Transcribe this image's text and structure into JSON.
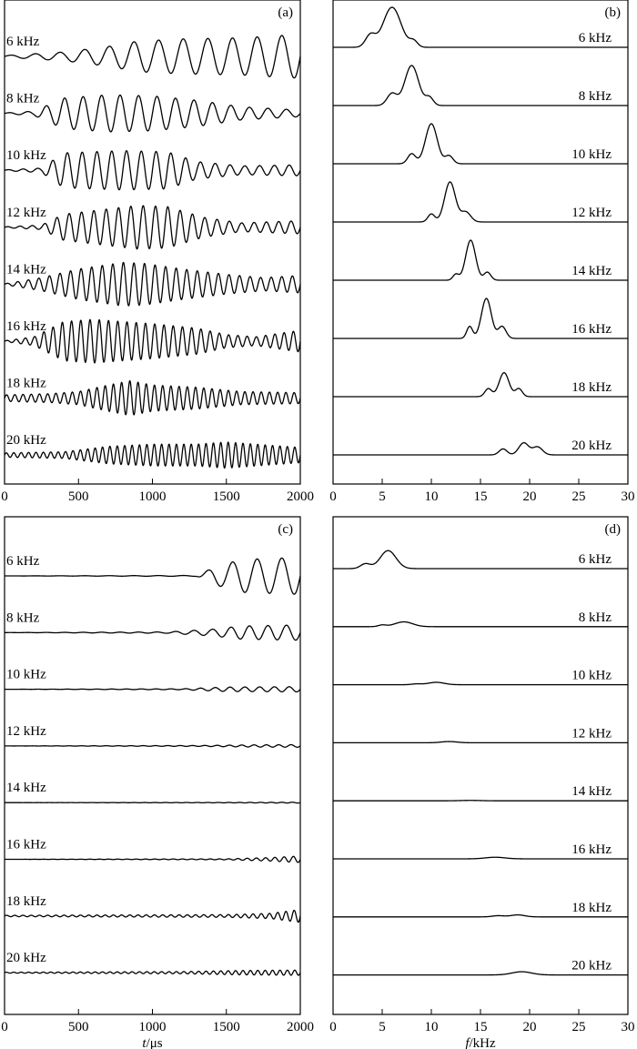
{
  "chart_data": [
    {
      "panel": "(a)",
      "type": "line",
      "xlim": [
        0,
        2000
      ],
      "x_ticks": [
        "0",
        "500",
        "1000",
        "1500",
        "2000"
      ],
      "series": [
        {
          "name": "6 kHz",
          "freq_khz": 6,
          "envelope": [
            [
              0,
              0.04
            ],
            [
              200,
              0.12
            ],
            [
              400,
              0.2
            ],
            [
              700,
              0.45
            ],
            [
              900,
              0.7
            ],
            [
              1200,
              0.8
            ],
            [
              1600,
              0.85
            ],
            [
              1850,
              0.95
            ],
            [
              2000,
              1.0
            ]
          ]
        },
        {
          "name": "8 kHz",
          "freq_khz": 8,
          "envelope": [
            [
              0,
              0.02
            ],
            [
              200,
              0.1
            ],
            [
              400,
              0.7
            ],
            [
              700,
              0.85
            ],
            [
              1000,
              0.8
            ],
            [
              1300,
              0.6
            ],
            [
              1600,
              0.3
            ],
            [
              2000,
              0.15
            ]
          ]
        },
        {
          "name": "10 kHz",
          "freq_khz": 10,
          "envelope": [
            [
              0,
              0.02
            ],
            [
              250,
              0.1
            ],
            [
              400,
              0.8
            ],
            [
              800,
              0.9
            ],
            [
              1100,
              0.85
            ],
            [
              1300,
              0.4
            ],
            [
              1600,
              0.2
            ],
            [
              2000,
              0.25
            ]
          ]
        },
        {
          "name": "12 kHz",
          "freq_khz": 12,
          "envelope": [
            [
              0,
              0.02
            ],
            [
              250,
              0.1
            ],
            [
              400,
              0.6
            ],
            [
              900,
              1.0
            ],
            [
              1100,
              0.95
            ],
            [
              1350,
              0.45
            ],
            [
              1600,
              0.2
            ],
            [
              2000,
              0.3
            ]
          ]
        },
        {
          "name": "14 kHz",
          "freq_khz": 14,
          "envelope": [
            [
              0,
              0.02
            ],
            [
              250,
              0.3
            ],
            [
              500,
              0.7
            ],
            [
              800,
              1.0
            ],
            [
              950,
              0.95
            ],
            [
              1200,
              0.7
            ],
            [
              1500,
              0.45
            ],
            [
              1750,
              0.3
            ],
            [
              2000,
              0.4
            ]
          ]
        },
        {
          "name": "16 kHz",
          "freq_khz": 16,
          "envelope": [
            [
              0,
              0.02
            ],
            [
              200,
              0.2
            ],
            [
              400,
              0.9
            ],
            [
              600,
              1.0
            ],
            [
              800,
              0.9
            ],
            [
              1000,
              0.8
            ],
            [
              1300,
              0.6
            ],
            [
              1500,
              0.3
            ],
            [
              1700,
              0.2
            ],
            [
              2000,
              0.5
            ]
          ]
        },
        {
          "name": "18 kHz",
          "freq_khz": 18,
          "envelope": [
            [
              0,
              0.15
            ],
            [
              300,
              0.2
            ],
            [
              500,
              0.3
            ],
            [
              700,
              0.6
            ],
            [
              850,
              0.8
            ],
            [
              1000,
              0.6
            ],
            [
              1300,
              0.5
            ],
            [
              1600,
              0.3
            ],
            [
              2000,
              0.25
            ]
          ]
        },
        {
          "name": "20 kHz",
          "freq_khz": 20,
          "envelope": [
            [
              0,
              0.1
            ],
            [
              400,
              0.15
            ],
            [
              700,
              0.4
            ],
            [
              1000,
              0.5
            ],
            [
              1300,
              0.5
            ],
            [
              1500,
              0.6
            ],
            [
              1700,
              0.5
            ],
            [
              2000,
              0.35
            ]
          ]
        }
      ]
    },
    {
      "panel": "(b)",
      "type": "line",
      "xlim": [
        0,
        30
      ],
      "x_ticks": [
        "0",
        "5",
        "10",
        "15",
        "20",
        "25",
        "30"
      ],
      "series": [
        {
          "name": "6 kHz",
          "peaks": [
            [
              6,
              1.0,
              0.9
            ],
            [
              3.8,
              0.3,
              0.5
            ],
            [
              8.2,
              0.15,
              0.4
            ]
          ]
        },
        {
          "name": "8 kHz",
          "peaks": [
            [
              8,
              1.0,
              0.7
            ],
            [
              6,
              0.3,
              0.5
            ],
            [
              9.8,
              0.2,
              0.4
            ]
          ]
        },
        {
          "name": "10 kHz",
          "peaks": [
            [
              10,
              1.0,
              0.6
            ],
            [
              8,
              0.25,
              0.4
            ],
            [
              11.8,
              0.2,
              0.4
            ]
          ]
        },
        {
          "name": "12 kHz",
          "peaks": [
            [
              11.9,
              1.0,
              0.55
            ],
            [
              10,
              0.2,
              0.35
            ],
            [
              13.5,
              0.25,
              0.5
            ]
          ]
        },
        {
          "name": "14 kHz",
          "peaks": [
            [
              14,
              1.0,
              0.5
            ],
            [
              12.5,
              0.15,
              0.3
            ],
            [
              15.7,
              0.2,
              0.35
            ]
          ]
        },
        {
          "name": "16 kHz",
          "peaks": [
            [
              15.6,
              1.0,
              0.5
            ],
            [
              13.9,
              0.3,
              0.3
            ],
            [
              17.2,
              0.3,
              0.4
            ]
          ]
        },
        {
          "name": "18 kHz",
          "peaks": [
            [
              17.4,
              0.6,
              0.5
            ],
            [
              15.8,
              0.2,
              0.35
            ],
            [
              18.9,
              0.2,
              0.35
            ]
          ]
        },
        {
          "name": "20 kHz",
          "peaks": [
            [
              19.4,
              0.3,
              0.5
            ],
            [
              17.3,
              0.15,
              0.4
            ],
            [
              20.8,
              0.2,
              0.5
            ]
          ]
        }
      ]
    },
    {
      "panel": "(c)",
      "type": "line",
      "xlim": [
        0,
        2000
      ],
      "x_ticks": [
        "0",
        "500",
        "1000",
        "1500",
        "2000"
      ],
      "xlabel_var": "t",
      "xlabel_unit": "/μs",
      "series": [
        {
          "name": "6 kHz",
          "freq_khz": 6,
          "envelope": [
            [
              0,
              0
            ],
            [
              1300,
              0.02
            ],
            [
              1420,
              0.4
            ],
            [
              1600,
              0.75
            ],
            [
              1800,
              0.8
            ],
            [
              2000,
              0.85
            ]
          ]
        },
        {
          "name": "8 kHz",
          "freq_khz": 8,
          "envelope": [
            [
              0,
              0
            ],
            [
              1100,
              0.03
            ],
            [
              1400,
              0.15
            ],
            [
              1600,
              0.3
            ],
            [
              2000,
              0.35
            ]
          ]
        },
        {
          "name": "10 kHz",
          "freq_khz": 10,
          "envelope": [
            [
              0,
              0
            ],
            [
              1200,
              0.02
            ],
            [
              1500,
              0.1
            ],
            [
              2000,
              0.12
            ]
          ]
        },
        {
          "name": "12 kHz",
          "freq_khz": 12,
          "envelope": [
            [
              0,
              0
            ],
            [
              1300,
              0.02
            ],
            [
              1700,
              0.05
            ],
            [
              2000,
              0.06
            ]
          ]
        },
        {
          "name": "14 kHz",
          "freq_khz": 14,
          "envelope": [
            [
              0,
              0
            ],
            [
              1500,
              0.01
            ],
            [
              2000,
              0.02
            ]
          ]
        },
        {
          "name": "16 kHz",
          "freq_khz": 16,
          "envelope": [
            [
              0,
              0
            ],
            [
              1500,
              0.02
            ],
            [
              1800,
              0.08
            ],
            [
              2000,
              0.15
            ]
          ]
        },
        {
          "name": "18 kHz",
          "freq_khz": 18,
          "envelope": [
            [
              0,
              0.03
            ],
            [
              1500,
              0.06
            ],
            [
              1800,
              0.12
            ],
            [
              2000,
              0.3
            ]
          ]
        },
        {
          "name": "20 kHz",
          "freq_khz": 20,
          "envelope": [
            [
              0,
              0.02
            ],
            [
              1200,
              0.05
            ],
            [
              1600,
              0.1
            ],
            [
              2000,
              0.12
            ]
          ]
        }
      ]
    },
    {
      "panel": "(d)",
      "type": "line",
      "xlim": [
        0,
        30
      ],
      "x_ticks": [
        "0",
        "5",
        "10",
        "15",
        "20",
        "25",
        "30"
      ],
      "xlabel_var": "f",
      "xlabel_unit": "/kHz",
      "series": [
        {
          "name": "6 kHz",
          "peaks": [
            [
              5.6,
              0.45,
              0.8
            ],
            [
              3.3,
              0.12,
              0.5
            ]
          ]
        },
        {
          "name": "8 kHz",
          "peaks": [
            [
              7.2,
              0.12,
              0.9
            ],
            [
              5,
              0.04,
              0.4
            ]
          ]
        },
        {
          "name": "10 kHz",
          "peaks": [
            [
              10.5,
              0.06,
              0.8
            ],
            [
              8.5,
              0.02,
              0.5
            ]
          ]
        },
        {
          "name": "12 kHz",
          "peaks": [
            [
              11.8,
              0.03,
              0.8
            ]
          ]
        },
        {
          "name": "14 kHz",
          "peaks": [
            [
              14,
              0.01,
              1.0
            ]
          ]
        },
        {
          "name": "16 kHz",
          "peaks": [
            [
              16.5,
              0.04,
              1.0
            ]
          ]
        },
        {
          "name": "18 kHz",
          "peaks": [
            [
              18.8,
              0.05,
              0.7
            ],
            [
              16.8,
              0.03,
              0.6
            ]
          ]
        },
        {
          "name": "20 kHz",
          "peaks": [
            [
              19.2,
              0.08,
              1.0
            ]
          ]
        }
      ]
    }
  ]
}
